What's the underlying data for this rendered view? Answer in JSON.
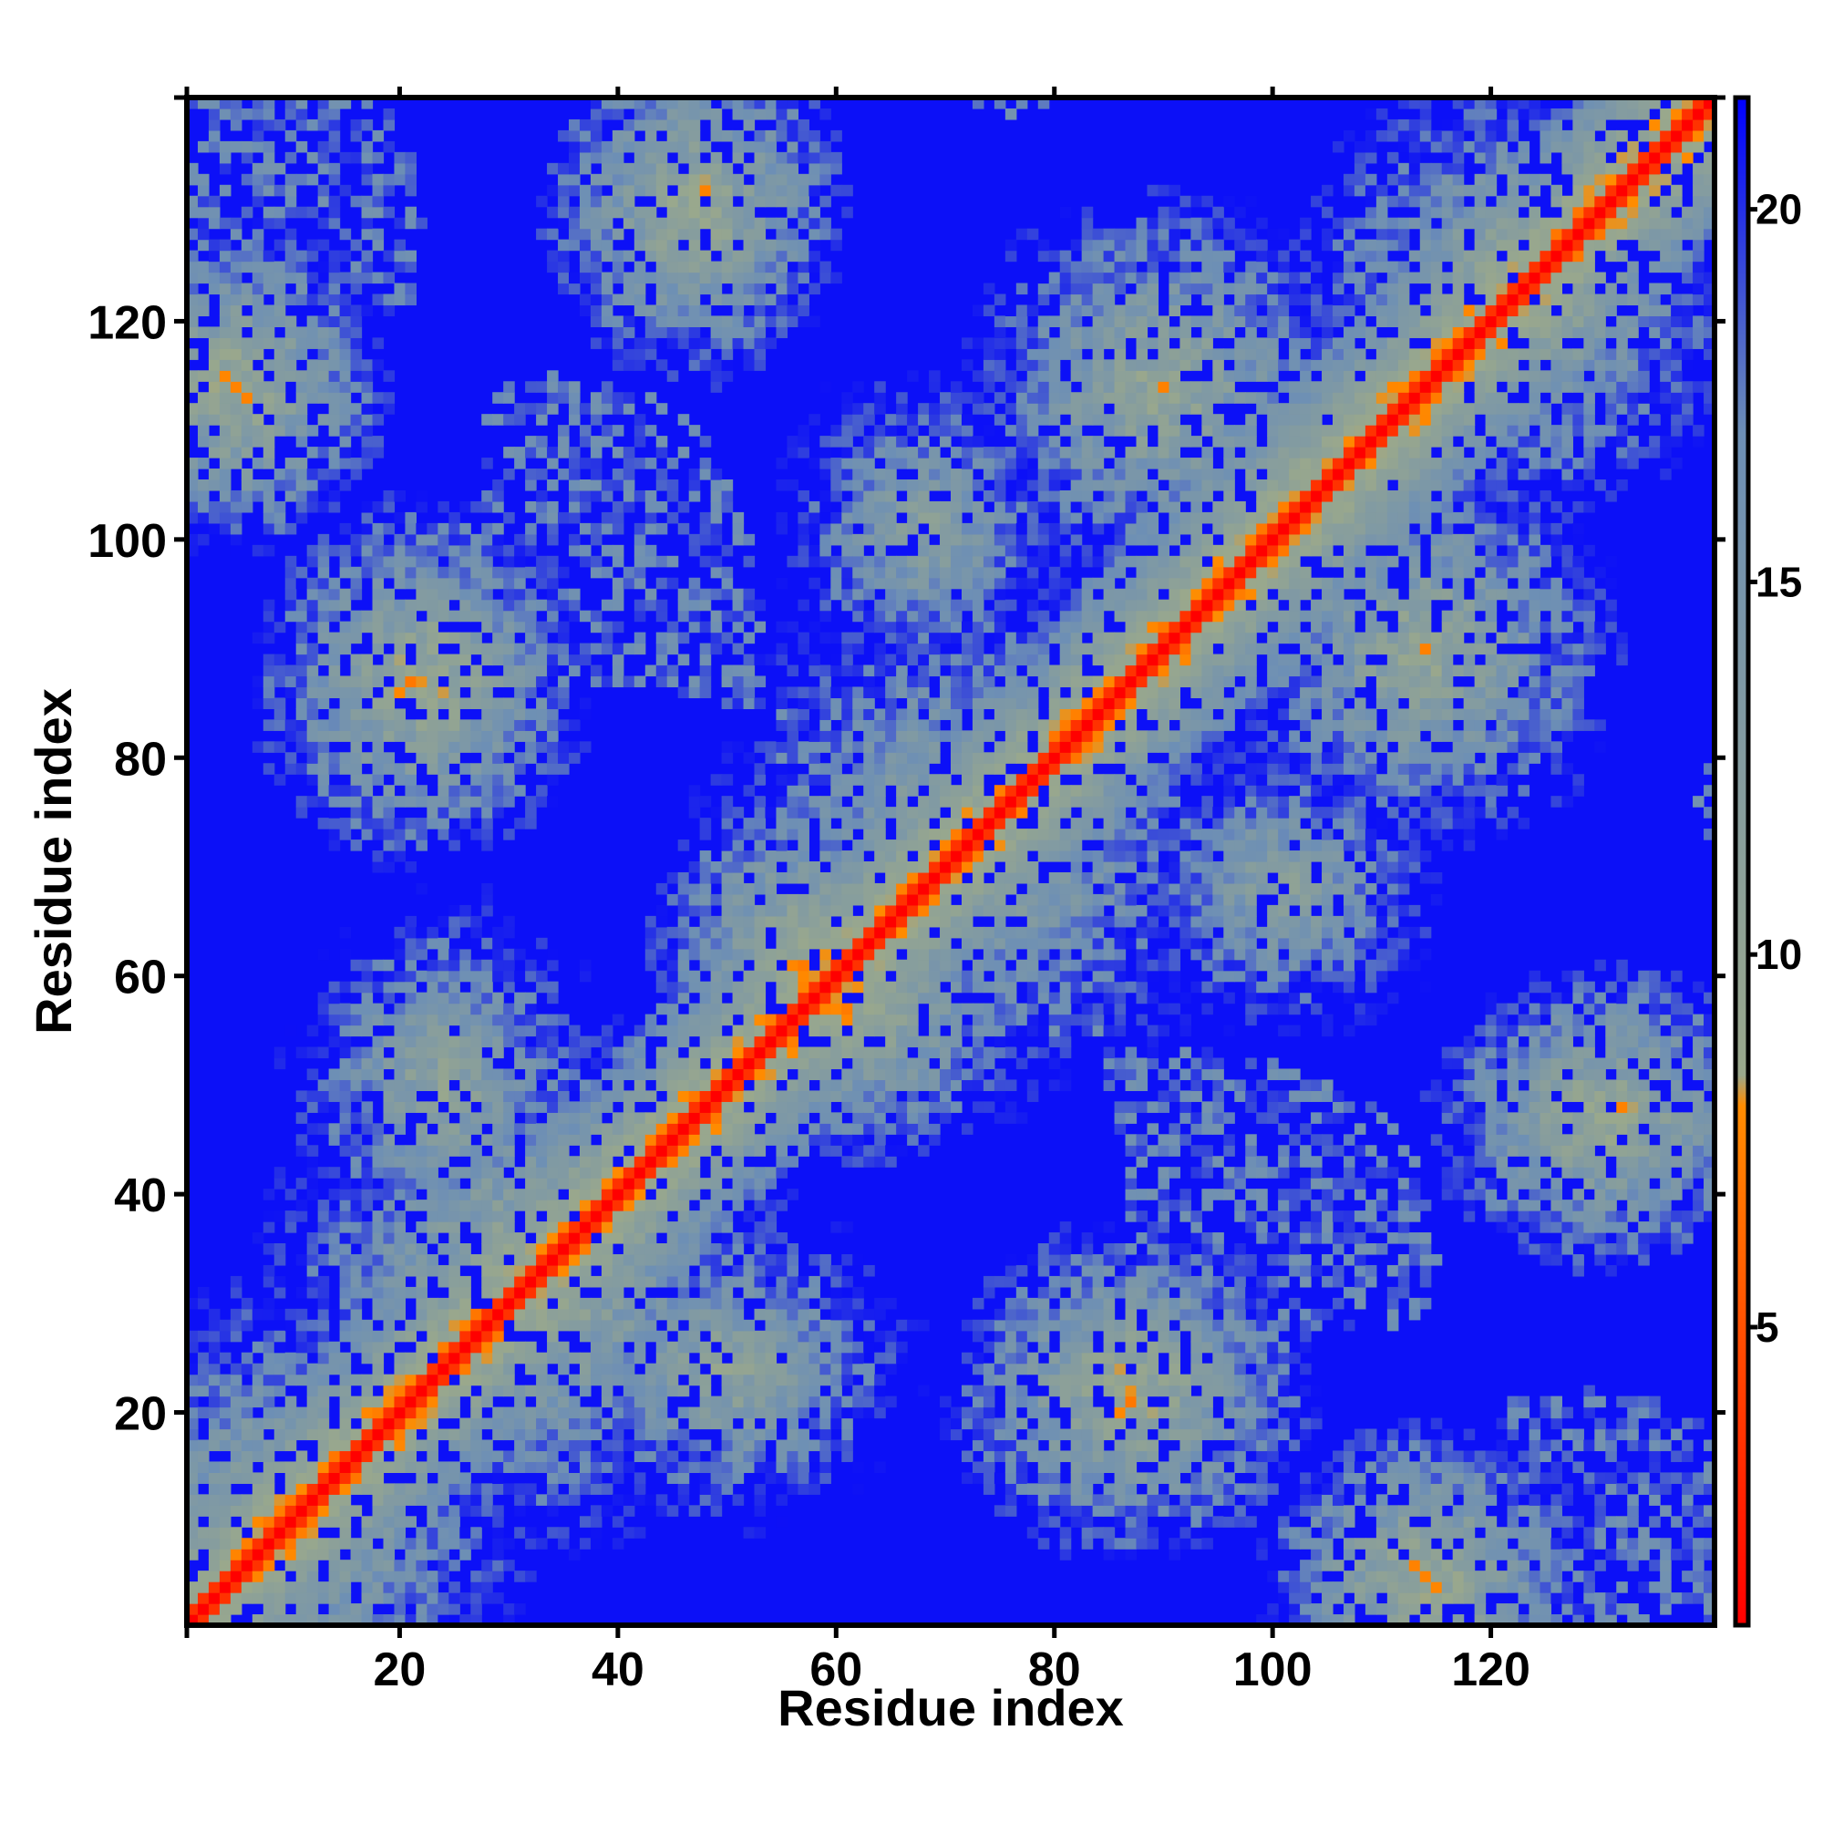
{
  "chart_data": {
    "type": "heatmap",
    "xlabel": "Residue index",
    "ylabel": "Residue index",
    "n_residues": 140,
    "xlim": [
      1,
      140
    ],
    "ylim": [
      1,
      140
    ],
    "x_ticks": [
      20,
      40,
      60,
      80,
      100,
      120
    ],
    "y_ticks": [
      20,
      40,
      60,
      80,
      100,
      120
    ],
    "colorbar": {
      "ticks": [
        5,
        10,
        15,
        20
      ],
      "range": [
        1,
        21.5
      ],
      "colors": [
        "#ff0000",
        "#ff8c00",
        "#9aa88c",
        "#6d8fb5",
        "#0000ff"
      ],
      "stops": [
        0,
        0.34,
        0.36,
        0.78,
        1
      ]
    },
    "diagonal_value": 1,
    "background_value": 21,
    "contact_regions": [
      {
        "x": [
          1,
          20
        ],
        "y": [
          1,
          20
        ],
        "value": 8
      },
      {
        "x": [
          22,
          42
        ],
        "y": [
          22,
          42
        ],
        "value": 7
      },
      {
        "x": [
          62,
          84
        ],
        "y": [
          62,
          84
        ],
        "value": 8
      },
      {
        "x": [
          95,
          110
        ],
        "y": [
          95,
          110
        ],
        "value": 8
      },
      {
        "x": [
          115,
          130
        ],
        "y": [
          115,
          130
        ],
        "value": 7
      },
      {
        "x": [
          44,
          50
        ],
        "y": [
          126,
          135
        ],
        "value": 6
      },
      {
        "x": [
          126,
          135
        ],
        "y": [
          44,
          50
        ],
        "value": 6
      },
      {
        "x": [
          18,
          26
        ],
        "y": [
          82,
          92
        ],
        "value": 6
      },
      {
        "x": [
          82,
          92
        ],
        "y": [
          18,
          26
        ],
        "value": 6
      },
      {
        "x": [
          2,
          8
        ],
        "y": [
          110,
          118
        ],
        "value": 6
      },
      {
        "x": [
          110,
          118
        ],
        "y": [
          2,
          8
        ],
        "value": 6
      },
      {
        "x": [
          84,
          96
        ],
        "y": [
          108,
          120
        ],
        "value": 7
      },
      {
        "x": [
          108,
          120
        ],
        "y": [
          84,
          96
        ],
        "value": 7
      },
      {
        "x": [
          28,
          38
        ],
        "y": [
          26,
          34
        ],
        "value": 7
      },
      {
        "x": [
          44,
          56
        ],
        "y": [
          20,
          28
        ],
        "value": 8
      },
      {
        "x": [
          20,
          28
        ],
        "y": [
          44,
          56
        ],
        "value": 8
      },
      {
        "x": [
          54,
          60
        ],
        "y": [
          58,
          66
        ],
        "value": 6
      },
      {
        "x": [
          64,
          72
        ],
        "y": [
          96,
          106
        ],
        "value": 9
      },
      {
        "x": [
          96,
          106
        ],
        "y": [
          64,
          72
        ],
        "value": 9
      }
    ]
  }
}
